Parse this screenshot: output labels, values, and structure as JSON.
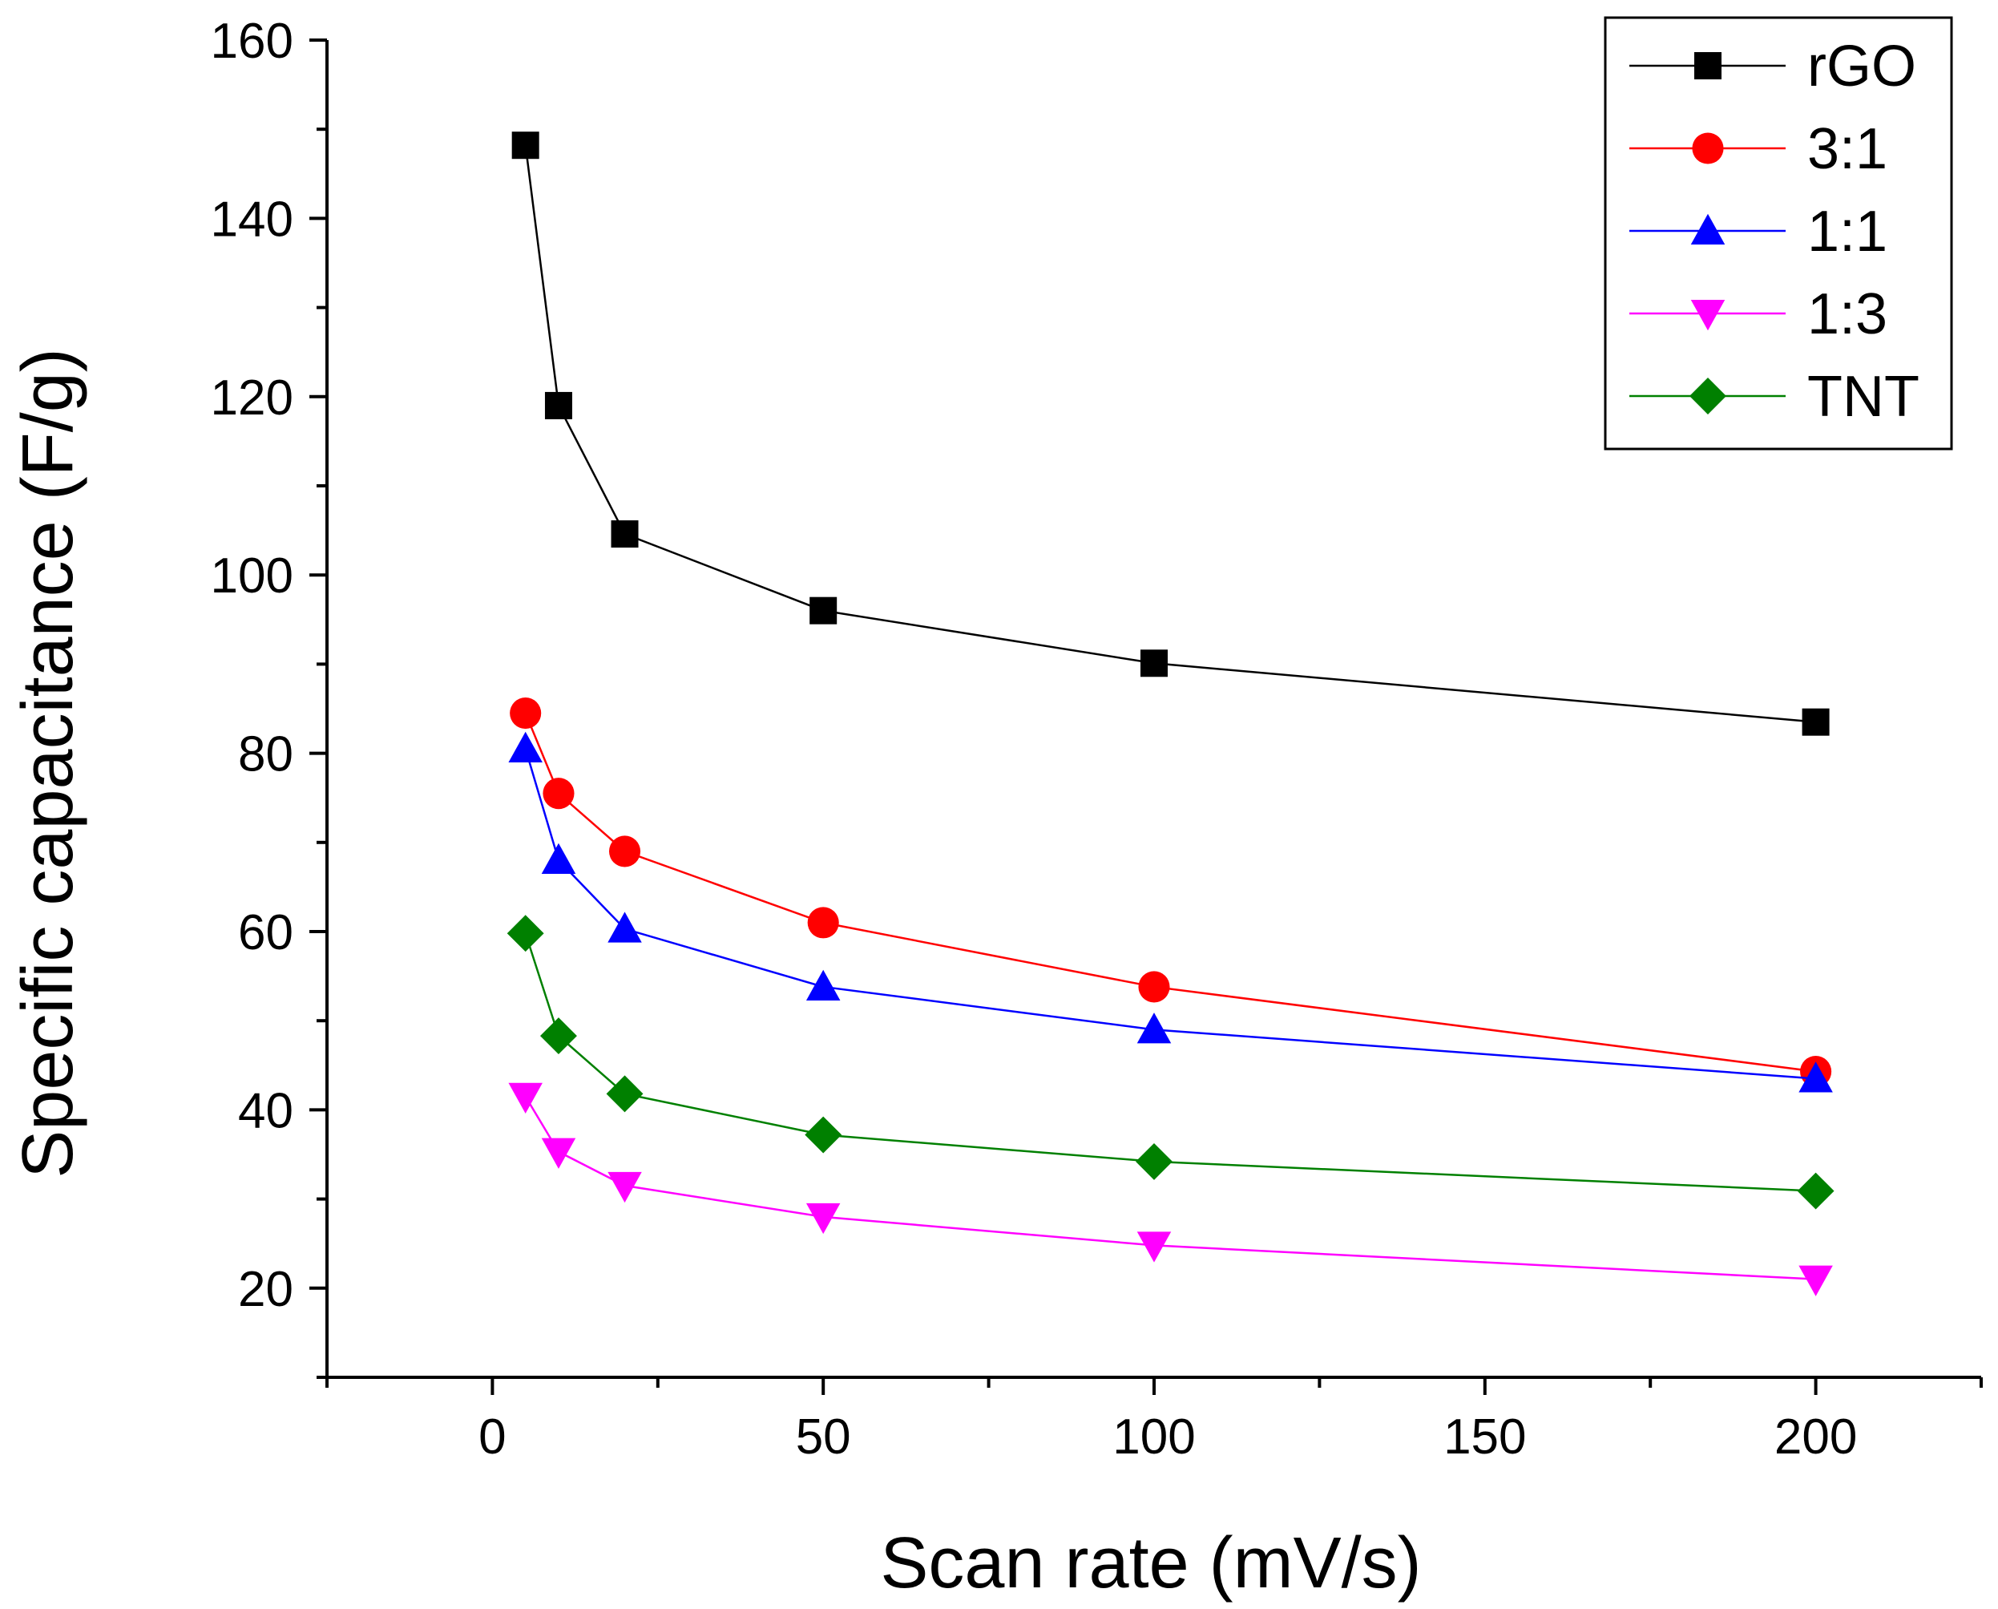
{
  "chart_data": {
    "type": "line",
    "title": "",
    "xlabel": "Scan rate (mV/s)",
    "ylabel": "Specific capacitance (F/g)",
    "xlim": [
      -25,
      225
    ],
    "ylim": [
      10,
      160
    ],
    "xticks": [
      0,
      50,
      100,
      150,
      200
    ],
    "yticks": [
      20,
      40,
      60,
      80,
      100,
      120,
      140,
      160
    ],
    "x": [
      5,
      10,
      20,
      50,
      100,
      200
    ],
    "grid": false,
    "legend_position": "top-right",
    "series": [
      {
        "name": "rGO",
        "color": "#000000",
        "marker": "square",
        "values": [
          148.2,
          119.0,
          104.6,
          96.0,
          90.1,
          83.5
        ]
      },
      {
        "name": "3:1",
        "color": "#ff0000",
        "marker": "circle",
        "values": [
          84.5,
          75.5,
          69.0,
          61.0,
          53.8,
          44.3
        ]
      },
      {
        "name": "1:1",
        "color": "#0000ff",
        "marker": "triangle-up",
        "values": [
          80.5,
          68.0,
          60.3,
          53.8,
          49.0,
          43.5
        ]
      },
      {
        "name": "1:3",
        "color": "#ff00ff",
        "marker": "triangle-down",
        "values": [
          41.5,
          35.3,
          31.5,
          28.0,
          24.8,
          21.0
        ]
      },
      {
        "name": "TNT",
        "color": "#008000",
        "marker": "diamond",
        "values": [
          59.8,
          48.3,
          41.8,
          37.2,
          34.2,
          30.9
        ]
      }
    ]
  }
}
